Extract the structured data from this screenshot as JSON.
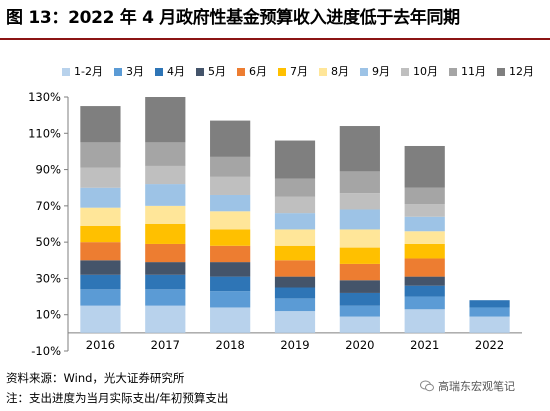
{
  "title": "图 13：2022 年 4 月政府性基金预算收入进度低于去年同期",
  "source": "资料来源：Wind，光大证券研究所",
  "note": "注：支出进度为当月实际支出/年初预算支出",
  "watermark": "高瑞东宏观笔记",
  "chart_data": {
    "type": "bar",
    "stacked": true,
    "categories": [
      "2016",
      "2017",
      "2018",
      "2019",
      "2020",
      "2021",
      "2022"
    ],
    "y_ticks": [
      "130%",
      "110%",
      "90%",
      "70%",
      "50%",
      "30%",
      "10%",
      "-10%"
    ],
    "ylim": [
      -10,
      130
    ],
    "legend_position": "top",
    "gridlines": false,
    "series": [
      {
        "name": "1-2月",
        "color": "#b8d2ec",
        "values": [
          15,
          15,
          14,
          12,
          9,
          13,
          9
        ]
      },
      {
        "name": "3月",
        "color": "#5b9bd5",
        "values": [
          9,
          9,
          9,
          7,
          6,
          7,
          5
        ]
      },
      {
        "name": "4月",
        "color": "#2e75b6",
        "values": [
          8,
          8,
          8,
          6,
          7,
          6,
          4
        ]
      },
      {
        "name": "5月",
        "color": "#44546a",
        "values": [
          8,
          7,
          8,
          6,
          7,
          5,
          0
        ]
      },
      {
        "name": "6月",
        "color": "#ed7d31",
        "values": [
          10,
          10,
          9,
          9,
          9,
          10,
          0
        ]
      },
      {
        "name": "7月",
        "color": "#ffc000",
        "values": [
          9,
          11,
          9,
          8,
          9,
          8,
          0
        ]
      },
      {
        "name": "8月",
        "color": "#ffe699",
        "values": [
          10,
          10,
          10,
          9,
          10,
          7,
          0
        ]
      },
      {
        "name": "9月",
        "color": "#9dc3e6",
        "values": [
          11,
          12,
          9,
          9,
          11,
          8,
          0
        ]
      },
      {
        "name": "10月",
        "color": "#bfbfbf",
        "values": [
          11,
          10,
          10,
          9,
          9,
          7,
          0
        ]
      },
      {
        "name": "11月",
        "color": "#a5a5a5",
        "values": [
          14,
          13,
          11,
          10,
          12,
          9,
          0
        ]
      },
      {
        "name": "12月",
        "color": "#7f7f7f",
        "values": [
          20,
          25,
          20,
          21,
          25,
          23,
          0
        ]
      }
    ]
  }
}
